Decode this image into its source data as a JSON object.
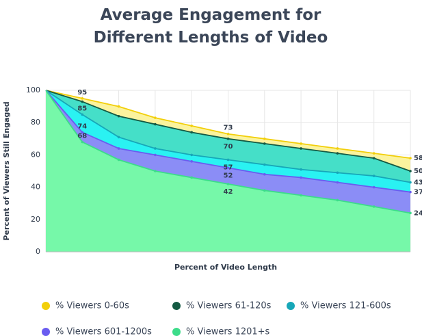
{
  "chart_data": {
    "type": "area",
    "title": "Average Engagement for Different Lengths of Video",
    "x_label": "Percent of Video Length",
    "y_label": "Percent of Viewers Still Engaged",
    "x": [
      0,
      10,
      20,
      30,
      40,
      50,
      60,
      70,
      80,
      90,
      100
    ],
    "xlim": [
      0,
      100
    ],
    "ylim": [
      0,
      100
    ],
    "yticks": [
      0,
      20,
      40,
      60,
      80,
      100
    ],
    "grid": true,
    "series": [
      {
        "name": "% Viewers 0-60s",
        "color": "#f2cf0a",
        "fill": "#fbf39e",
        "values": [
          100,
          95,
          90,
          83,
          78,
          73,
          70,
          67,
          64,
          61,
          58
        ],
        "labels_at": [
          1,
          5,
          10
        ]
      },
      {
        "name": "% Viewers 61-120s",
        "color": "#145a43",
        "fill": "#45dfc8",
        "values": [
          100,
          93,
          84,
          79,
          74,
          70,
          67,
          64,
          61,
          58,
          50
        ],
        "labels_at": [
          5,
          10
        ]
      },
      {
        "name": "% Viewers 121-600s",
        "color": "#17a7b8",
        "fill": "#2af2f2",
        "values": [
          100,
          85,
          71,
          64,
          60,
          57,
          54,
          51,
          49,
          47,
          43
        ],
        "labels_at": [
          1,
          5,
          10
        ]
      },
      {
        "name": "% Viewers 601-1200s",
        "color": "#6a5cf0",
        "fill": "#8b8df6",
        "values": [
          100,
          74,
          64,
          60,
          56,
          52,
          48,
          46,
          43,
          40,
          37
        ],
        "labels_at": [
          1,
          5,
          10
        ]
      },
      {
        "name": "% Viewers 1201+s",
        "color": "#3ddc8a",
        "fill": "#76f8a9",
        "values": [
          100,
          68,
          57,
          50,
          46,
          42,
          38,
          35,
          32,
          28,
          24
        ],
        "labels_at": [
          1,
          5,
          10
        ]
      }
    ]
  }
}
